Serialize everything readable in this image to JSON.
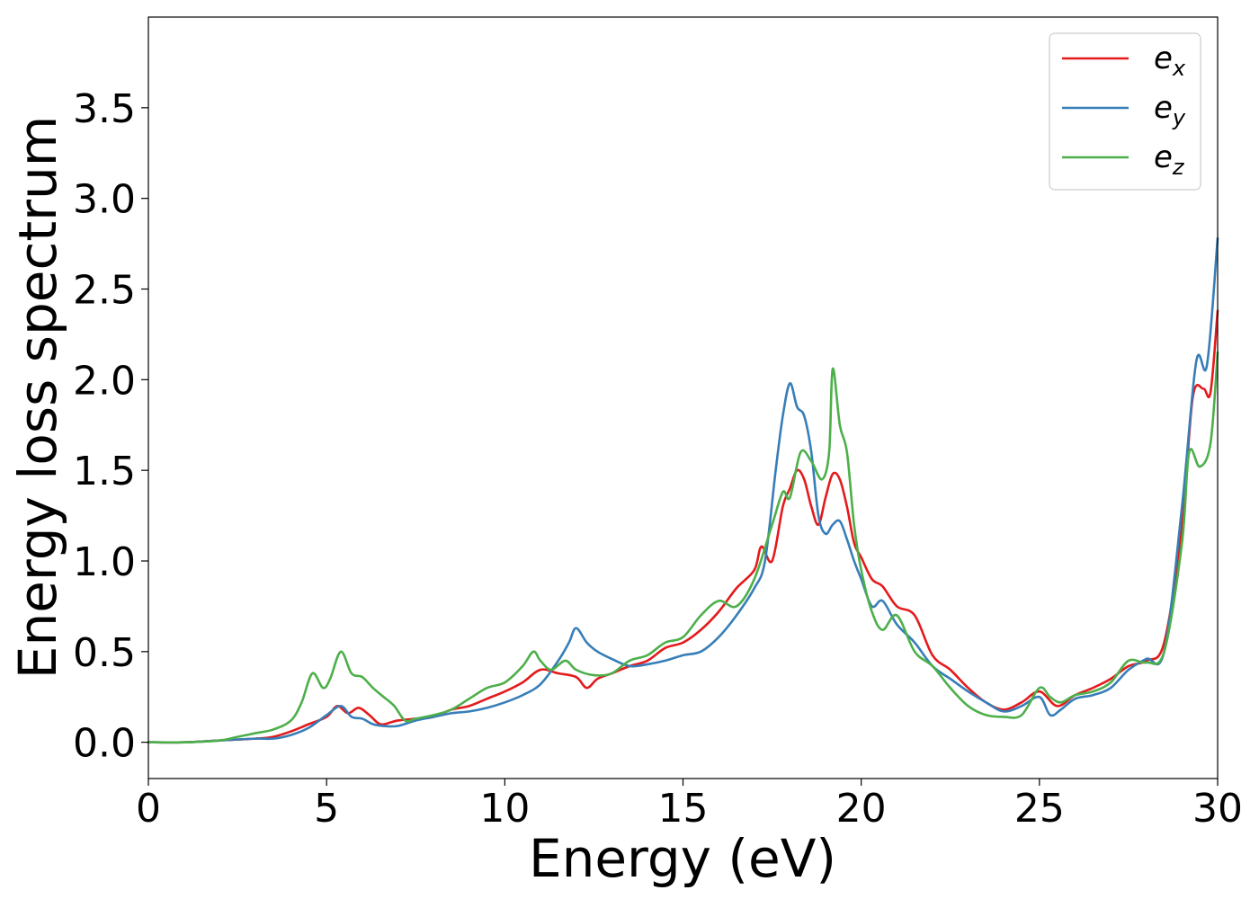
{
  "chart_data": {
    "type": "line",
    "xlabel": "Energy (eV)",
    "ylabel": "Energy loss spectrum",
    "xlim": [
      0,
      30
    ],
    "ylim": [
      -0.2,
      4.0
    ],
    "xticks": [
      "0",
      "5",
      "10",
      "15",
      "20",
      "25",
      "30"
    ],
    "yticks": [
      "0.0",
      "0.5",
      "1.0",
      "1.5",
      "2.0",
      "2.5",
      "3.0",
      "3.5"
    ],
    "grid": false,
    "legend_position": "top-right",
    "series": [
      {
        "name": "e_x",
        "label_main": "e",
        "label_sub": "x",
        "color": "#e41a1c",
        "x": [
          0,
          1,
          2,
          3,
          3.5,
          4,
          4.5,
          5,
          5.3,
          5.6,
          5.9,
          6.2,
          6.5,
          6.8,
          7,
          7.5,
          8,
          8.5,
          9,
          9.5,
          10,
          10.5,
          11,
          11.5,
          12,
          12.3,
          12.6,
          13,
          13.5,
          14,
          14.5,
          15,
          15.5,
          16,
          16.5,
          17,
          17.2,
          17.5,
          17.8,
          18,
          18.2,
          18.4,
          18.6,
          18.8,
          19,
          19.2,
          19.4,
          19.6,
          19.8,
          20,
          20.3,
          20.6,
          21,
          21.5,
          22,
          22.5,
          23,
          23.5,
          24,
          24.5,
          25,
          25.5,
          26,
          26.5,
          27,
          27.5,
          28,
          28.5,
          29,
          29.3,
          29.6,
          29.8,
          30
        ],
        "y": [
          0,
          0,
          0.01,
          0.02,
          0.03,
          0.06,
          0.1,
          0.14,
          0.2,
          0.16,
          0.19,
          0.15,
          0.1,
          0.11,
          0.12,
          0.13,
          0.14,
          0.18,
          0.2,
          0.24,
          0.28,
          0.33,
          0.4,
          0.38,
          0.36,
          0.3,
          0.35,
          0.38,
          0.42,
          0.45,
          0.52,
          0.55,
          0.62,
          0.72,
          0.85,
          0.95,
          1.08,
          1.0,
          1.3,
          1.4,
          1.5,
          1.45,
          1.3,
          1.2,
          1.35,
          1.48,
          1.45,
          1.3,
          1.1,
          1.02,
          0.9,
          0.86,
          0.75,
          0.7,
          0.48,
          0.4,
          0.3,
          0.22,
          0.18,
          0.22,
          0.28,
          0.2,
          0.26,
          0.3,
          0.35,
          0.42,
          0.45,
          0.55,
          1.2,
          1.9,
          1.95,
          1.93,
          2.38
        ]
      },
      {
        "name": "e_y",
        "label_main": "e",
        "label_sub": "y",
        "color": "#377eb8",
        "x": [
          0,
          1,
          2,
          3,
          3.5,
          4,
          4.5,
          5,
          5.4,
          5.7,
          6,
          6.3,
          6.6,
          7,
          7.5,
          8,
          8.5,
          9,
          9.5,
          10,
          10.5,
          11,
          11.5,
          11.8,
          12,
          12.3,
          12.6,
          13,
          13.5,
          14,
          14.5,
          15,
          15.5,
          16,
          16.5,
          17,
          17.3,
          17.6,
          17.8,
          18,
          18.2,
          18.4,
          18.6,
          18.8,
          19,
          19.2,
          19.4,
          19.6,
          19.8,
          20,
          20.3,
          20.6,
          21,
          21.5,
          22,
          22.5,
          23,
          23.5,
          24,
          24.5,
          25,
          25.3,
          25.6,
          26,
          26.5,
          27,
          27.5,
          28,
          28.5,
          29,
          29.4,
          29.7,
          30
        ],
        "y": [
          0,
          0,
          0.01,
          0.02,
          0.02,
          0.04,
          0.08,
          0.15,
          0.2,
          0.14,
          0.13,
          0.1,
          0.09,
          0.09,
          0.12,
          0.14,
          0.16,
          0.17,
          0.19,
          0.22,
          0.26,
          0.32,
          0.45,
          0.55,
          0.63,
          0.55,
          0.5,
          0.46,
          0.42,
          0.43,
          0.45,
          0.48,
          0.5,
          0.58,
          0.7,
          0.85,
          1.0,
          1.5,
          1.8,
          1.98,
          1.85,
          1.8,
          1.6,
          1.25,
          1.15,
          1.2,
          1.22,
          1.12,
          1.0,
          0.9,
          0.75,
          0.78,
          0.65,
          0.55,
          0.42,
          0.35,
          0.28,
          0.22,
          0.17,
          0.2,
          0.25,
          0.15,
          0.18,
          0.24,
          0.26,
          0.3,
          0.4,
          0.46,
          0.5,
          1.3,
          2.1,
          2.08,
          2.78
        ]
      },
      {
        "name": "e_z",
        "label_main": "e",
        "label_sub": "z",
        "color": "#4daf4a",
        "x": [
          0,
          1,
          2,
          2.5,
          3,
          3.5,
          4,
          4.3,
          4.6,
          4.9,
          5.1,
          5.4,
          5.7,
          6,
          6.3,
          6.6,
          6.9,
          7.2,
          7.5,
          8,
          8.5,
          9,
          9.5,
          10,
          10.5,
          10.8,
          11,
          11.3,
          11.7,
          12,
          12.5,
          13,
          13.5,
          14,
          14.5,
          15,
          15.5,
          16,
          16.5,
          17,
          17.5,
          17.8,
          18,
          18.3,
          18.6,
          18.9,
          19.1,
          19.2,
          19.4,
          19.6,
          19.8,
          20,
          20.3,
          20.6,
          21,
          21.5,
          22,
          22.5,
          23,
          23.5,
          24,
          24.5,
          25,
          25.3,
          25.6,
          26,
          26.5,
          27,
          27.5,
          28,
          28.5,
          29,
          29.2,
          29.5,
          29.8,
          30
        ],
        "y": [
          0,
          0,
          0.01,
          0.03,
          0.05,
          0.07,
          0.12,
          0.22,
          0.38,
          0.3,
          0.35,
          0.5,
          0.38,
          0.36,
          0.3,
          0.25,
          0.2,
          0.12,
          0.13,
          0.15,
          0.18,
          0.24,
          0.3,
          0.33,
          0.42,
          0.5,
          0.45,
          0.4,
          0.45,
          0.4,
          0.37,
          0.38,
          0.45,
          0.48,
          0.55,
          0.58,
          0.7,
          0.78,
          0.75,
          0.9,
          1.2,
          1.38,
          1.35,
          1.6,
          1.55,
          1.45,
          1.6,
          2.06,
          1.75,
          1.6,
          1.2,
          0.95,
          0.72,
          0.62,
          0.7,
          0.5,
          0.42,
          0.3,
          0.2,
          0.15,
          0.14,
          0.15,
          0.3,
          0.25,
          0.22,
          0.26,
          0.28,
          0.33,
          0.45,
          0.44,
          0.5,
          1.1,
          1.6,
          1.52,
          1.65,
          2.15
        ]
      }
    ]
  }
}
